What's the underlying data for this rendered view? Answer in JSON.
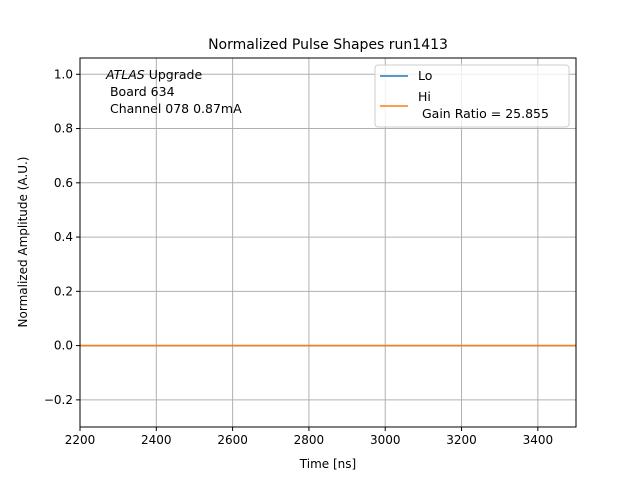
{
  "chart_data": {
    "type": "line",
    "title": "Normalized Pulse Shapes run1413",
    "xlabel": "Time [ns]",
    "ylabel": "Normalized Amplitude (A.U.)",
    "xlim": [
      2200,
      3500
    ],
    "ylim": [
      -0.3,
      1.06
    ],
    "xticks": [
      2200,
      2400,
      2600,
      2800,
      3000,
      3200,
      3400
    ],
    "yticks": [
      -0.2,
      0.0,
      0.2,
      0.4,
      0.6,
      0.8,
      1.0
    ],
    "grid": true,
    "legend_position": "top-right",
    "annotation": {
      "line1_italic": "ATLAS",
      "line1_rest": " Upgrade",
      "line2": " Board 634",
      "line3": " Channel 078 0.87mA"
    },
    "series": [
      {
        "name": "Lo",
        "color": "#1f77b4",
        "x": [
          2200,
          3500
        ],
        "y": [
          0.0,
          0.0
        ]
      },
      {
        "name": "Hi\n Gain Ratio = 25.855",
        "color": "#ff7f0e",
        "x": [
          2200,
          3500
        ],
        "y": [
          0.0,
          0.0
        ]
      }
    ],
    "legend": {
      "entry1": "Lo",
      "entry2_line1": "Hi",
      "entry2_line2": " Gain Ratio = 25.855"
    }
  }
}
